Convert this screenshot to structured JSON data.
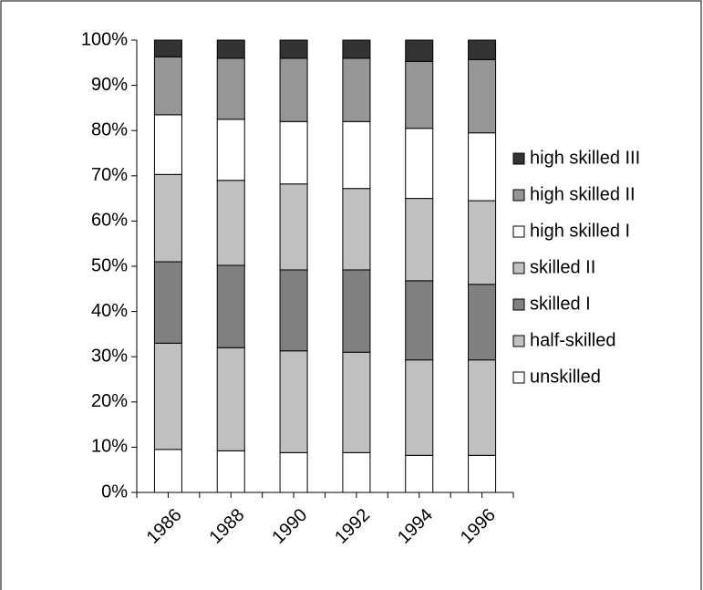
{
  "chart_data": {
    "type": "stacked_bar",
    "categories": [
      "1986",
      "1988",
      "1990",
      "1992",
      "1994",
      "1996"
    ],
    "series": [
      {
        "name": "unskilled",
        "color": "#ffffff",
        "values": [
          9.5,
          9.2,
          8.8,
          8.8,
          8.2,
          8.2
        ]
      },
      {
        "name": "half-skilled",
        "color": "#c0c0c0",
        "values": [
          23.5,
          22.8,
          22.5,
          22.2,
          21.1,
          21.1
        ]
      },
      {
        "name": "skilled I",
        "color": "#808080",
        "values": [
          18,
          18.2,
          17.9,
          18.2,
          17.5,
          16.7
        ]
      },
      {
        "name": "skilled II",
        "color": "#c0c0c0",
        "values": [
          19.3,
          18.8,
          19,
          18,
          18.2,
          18.5
        ]
      },
      {
        "name": "high skilled I",
        "color": "#ffffff",
        "values": [
          13.2,
          13.5,
          13.8,
          14.8,
          15.5,
          15
        ]
      },
      {
        "name": "high skilled II",
        "color": "#969696",
        "values": [
          12.8,
          13.5,
          14,
          14,
          14.8,
          16.2
        ]
      },
      {
        "name": "high skilled III",
        "color": "#333333",
        "values": [
          3.7,
          4.0,
          4.0,
          4.0,
          4.7,
          4.3
        ]
      }
    ],
    "ylim": [
      0,
      100
    ],
    "yticks": [
      {
        "value": 0,
        "label": "0%"
      },
      {
        "value": 10,
        "label": "10%"
      },
      {
        "value": 20,
        "label": "20%"
      },
      {
        "value": 30,
        "label": "30%"
      },
      {
        "value": 40,
        "label": "40%"
      },
      {
        "value": 50,
        "label": "50%"
      },
      {
        "value": 60,
        "label": "60%"
      },
      {
        "value": 70,
        "label": "70%"
      },
      {
        "value": 80,
        "label": "80%"
      },
      {
        "value": 90,
        "label": "90%"
      },
      {
        "value": 100,
        "label": "100%"
      }
    ],
    "legend": "right"
  }
}
